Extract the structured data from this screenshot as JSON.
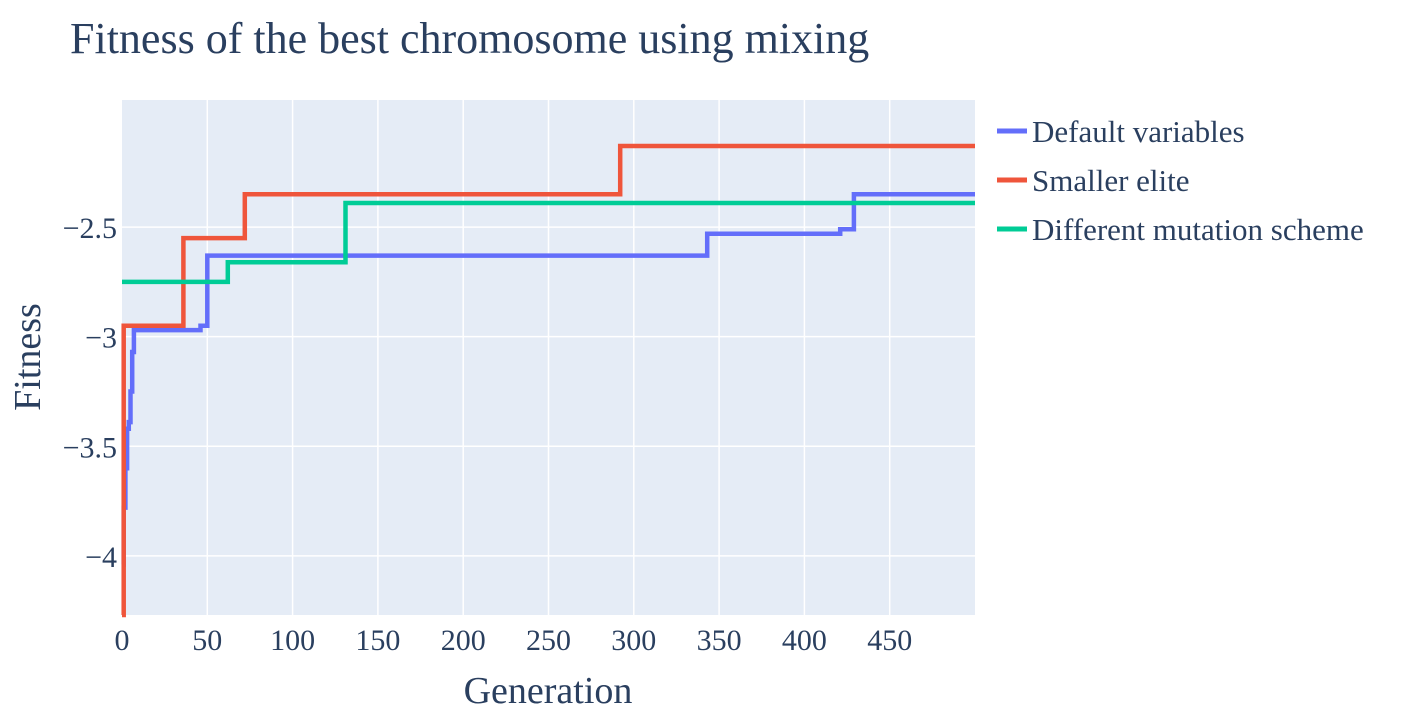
{
  "chart_data": {
    "type": "line",
    "title": "Fitness of the best chromosome using mixing",
    "xlabel": "Generation",
    "ylabel": "Fitness",
    "xlim": [
      0,
      500
    ],
    "ylim": [
      -4.27,
      -1.92
    ],
    "xticks": [
      0,
      50,
      100,
      150,
      200,
      250,
      300,
      350,
      400,
      450
    ],
    "xtick_labels": [
      "0",
      "50",
      "100",
      "150",
      "200",
      "250",
      "300",
      "350",
      "400",
      "450"
    ],
    "yticks": [
      -4,
      -3.5,
      -3,
      -2.5
    ],
    "ytick_labels": [
      "−4",
      "−3.5",
      "−3",
      "−2.5"
    ],
    "grid": true,
    "legend_position": "right",
    "line_shape": "step",
    "plot_background": "#e5ecf6",
    "series": [
      {
        "name": "Default variables",
        "color": "#636efa",
        "x": [
          0,
          1,
          2,
          3,
          4,
          5,
          6,
          7,
          45,
          46,
          49,
          50,
          342,
          343,
          420,
          421,
          428,
          429,
          500
        ],
        "y": [
          -4.04,
          -3.78,
          -3.6,
          -3.42,
          -3.39,
          -3.25,
          -3.07,
          -2.97,
          -2.97,
          -2.95,
          -2.95,
          -2.63,
          -2.63,
          -2.53,
          -2.53,
          -2.51,
          -2.51,
          -2.35,
          -2.35
        ]
      },
      {
        "name": "Smaller elite",
        "color": "#ef553b",
        "x": [
          0,
          1,
          36,
          72,
          292,
          500
        ],
        "y": [
          -4.27,
          -2.95,
          -2.55,
          -2.35,
          -2.13,
          -2.13
        ]
      },
      {
        "name": "Different mutation scheme",
        "color": "#00cc96",
        "x": [
          0,
          62,
          131,
          500
        ],
        "y": [
          -2.75,
          -2.66,
          -2.39,
          -2.39
        ]
      }
    ]
  }
}
